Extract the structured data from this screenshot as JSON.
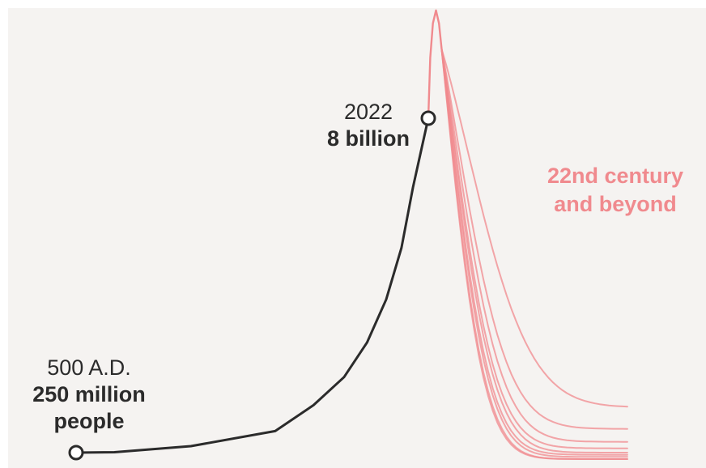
{
  "chart_data": {
    "type": "line",
    "title": "",
    "xlabel": "",
    "ylabel": "",
    "colors": {
      "history": "#2b2b2b",
      "projection": "#f08a8e",
      "background": "#f5f3f1"
    },
    "grid": false,
    "legend": "none",
    "annotations": {
      "start": {
        "year": "500 A.D.",
        "value_line1": "250 million",
        "value_line2": "people"
      },
      "now": {
        "year": "2022",
        "value": "8 billion"
      },
      "projection_label_line1": "22nd century",
      "projection_label_line2": "and beyond"
    },
    "history": {
      "name": "",
      "points": [
        [
          0,
          0.25
        ],
        [
          0.1,
          0.26
        ],
        [
          0.3,
          0.4
        ],
        [
          0.52,
          0.75
        ],
        [
          0.62,
          1.35
        ],
        [
          0.7,
          2.0
        ],
        [
          0.76,
          2.8
        ],
        [
          0.81,
          3.8
        ],
        [
          0.85,
          5.0
        ],
        [
          0.88,
          6.4
        ],
        [
          0.905,
          7.4
        ],
        [
          0.92,
          8.0
        ]
      ]
    },
    "peak": {
      "points": [
        [
          0.92,
          8.0
        ],
        [
          0.925,
          9.4
        ],
        [
          0.932,
          10.2
        ],
        [
          0.94,
          10.5
        ],
        [
          0.948,
          10.2
        ],
        [
          0.955,
          9.6
        ]
      ]
    },
    "projections": {
      "start": [
        0.955,
        9.6
      ],
      "end_x": 1.44,
      "end_values": [
        0.1,
        0.1,
        0.15,
        0.2,
        0.25,
        0.35,
        0.5,
        0.8,
        1.3
      ],
      "decay_rates": [
        13,
        12.5,
        11.5,
        11,
        10,
        9.5,
        8.5,
        7.5,
        5
      ]
    }
  }
}
